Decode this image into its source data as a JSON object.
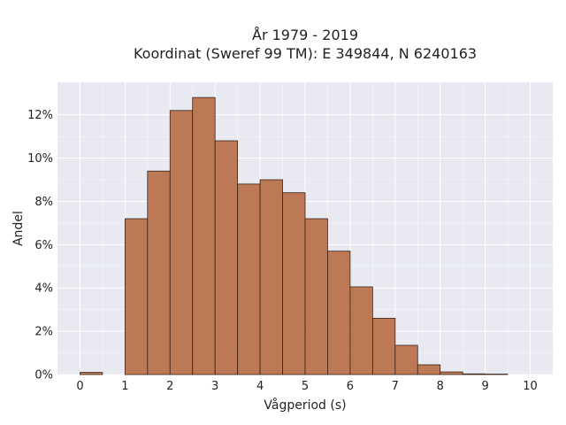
{
  "chart_data": {
    "type": "bar",
    "title": "År 1979 - 2019",
    "subtitle": "Koordinat (Sweref 99 TM): E 349844, N 6240163",
    "xlabel": "Vågperiod (s)",
    "ylabel": "Andel",
    "xlim": [
      -0.5,
      10.5
    ],
    "ylim": [
      0,
      13.5
    ],
    "x_ticks": [
      0,
      1,
      2,
      3,
      4,
      5,
      6,
      7,
      8,
      9,
      10
    ],
    "x_tick_labels": [
      "0",
      "1",
      "2",
      "3",
      "4",
      "5",
      "6",
      "7",
      "8",
      "9",
      "10"
    ],
    "y_ticks": [
      0,
      2,
      4,
      6,
      8,
      10,
      12
    ],
    "y_tick_labels": [
      "0%",
      "2%",
      "4%",
      "6%",
      "8%",
      "10%",
      "12%"
    ],
    "grid": true,
    "bin_width": 0.5,
    "bins": [
      {
        "x0": 0.0,
        "x1": 0.5,
        "value": 0.1
      },
      {
        "x0": 1.0,
        "x1": 1.5,
        "value": 7.2
      },
      {
        "x0": 1.5,
        "x1": 2.0,
        "value": 9.4
      },
      {
        "x0": 2.0,
        "x1": 2.5,
        "value": 12.2
      },
      {
        "x0": 2.5,
        "x1": 3.0,
        "value": 12.8
      },
      {
        "x0": 3.0,
        "x1": 3.5,
        "value": 10.8
      },
      {
        "x0": 3.5,
        "x1": 4.0,
        "value": 8.8
      },
      {
        "x0": 4.0,
        "x1": 4.5,
        "value": 9.0
      },
      {
        "x0": 4.5,
        "x1": 5.0,
        "value": 8.4
      },
      {
        "x0": 5.0,
        "x1": 5.5,
        "value": 7.2
      },
      {
        "x0": 5.5,
        "x1": 6.0,
        "value": 5.7
      },
      {
        "x0": 6.0,
        "x1": 6.5,
        "value": 4.05
      },
      {
        "x0": 6.5,
        "x1": 7.0,
        "value": 2.6
      },
      {
        "x0": 7.0,
        "x1": 7.5,
        "value": 1.35
      },
      {
        "x0": 7.5,
        "x1": 8.0,
        "value": 0.45
      },
      {
        "x0": 8.0,
        "x1": 8.5,
        "value": 0.12
      },
      {
        "x0": 8.5,
        "x1": 9.0,
        "value": 0.03
      },
      {
        "x0": 9.0,
        "x1": 9.5,
        "value": 0.02
      }
    ],
    "colors": {
      "bar": "#b86f48",
      "bar_edge": "#3a2418",
      "plot_background": "#e8e9f1",
      "grid": "#ffffff"
    }
  }
}
